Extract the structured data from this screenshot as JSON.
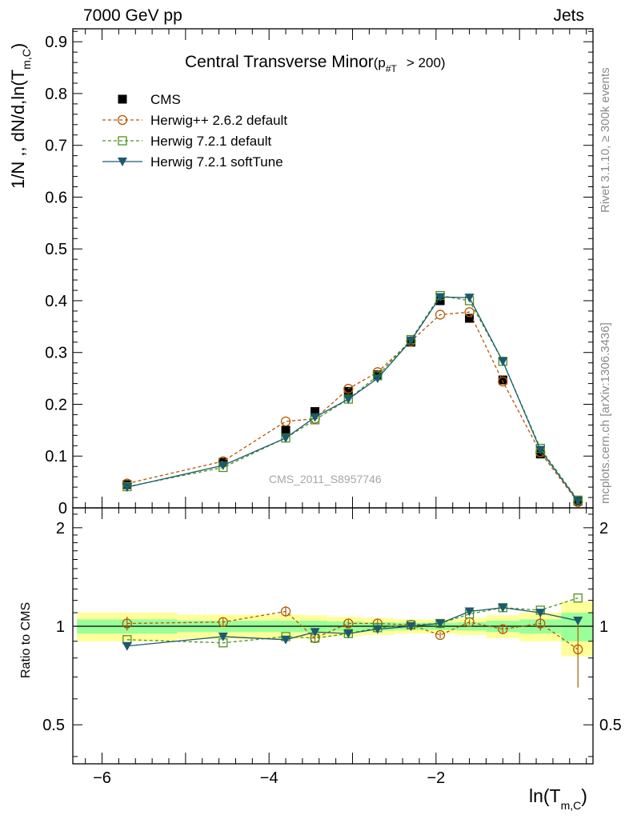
{
  "header": {
    "energy_label": "7000 GeV pp",
    "category_label": "Jets"
  },
  "side_labels": {
    "rivet": "Rivet 3.1.10, ≥ 300k events",
    "mcplots": "mcplots.cern.ch [arXiv:1306.3436]"
  },
  "chart_data": {
    "type": "line",
    "title": "Central Transverse Minor",
    "title_cut": "(p",
    "title_cut_sub": "#T",
    "title_cut_tail": "> 200)",
    "watermark": "CMS_2011_S8957746",
    "xlabel": "ln(T",
    "xlabel_sub": "m,C",
    "xlabel_tail": ")",
    "ylabel": "1/N ,, dN/d,ln(T",
    "ylabel_sub": "m,C",
    "ylabel_tail": ")",
    "ratio_ylabel": "Ratio to CMS",
    "xlim": [
      -6.35,
      -0.12
    ],
    "ylim": [
      0,
      0.925
    ],
    "ratio_ylim": [
      0.38,
      2.3
    ],
    "ratio_scale": "log",
    "x_ticks": [
      "−6",
      "−4",
      "−2"
    ],
    "x_tick_values": [
      -6,
      -4,
      -2
    ],
    "y_ticks": [
      "0",
      "0.1",
      "0.2",
      "0.3",
      "0.4",
      "0.5",
      "0.6",
      "0.7",
      "0.8",
      "0.9"
    ],
    "y_tick_values": [
      0,
      0.1,
      0.2,
      0.3,
      0.4,
      0.5,
      0.6,
      0.7,
      0.8,
      0.9
    ],
    "ratio_ticks": [
      "0.5",
      "1",
      "2"
    ],
    "ratio_tick_values": [
      0.5,
      1,
      2
    ],
    "legend_position": "top-left",
    "x": [
      -5.7,
      -4.55,
      -3.8,
      -3.45,
      -3.05,
      -2.7,
      -2.3,
      -1.95,
      -1.6,
      -1.2,
      -0.75,
      -0.3
    ],
    "x_edges": [
      -6.3,
      -5.1,
      -4.05,
      -3.55,
      -3.3,
      -2.9,
      -2.5,
      -2.1,
      -1.75,
      -1.4,
      -1.0,
      -0.5,
      -0.12
    ],
    "series": [
      {
        "name": "CMS",
        "color": "#000000",
        "marker": "square-filled",
        "line": "none",
        "values": [
          0.045,
          0.088,
          0.15,
          0.186,
          0.225,
          0.257,
          0.32,
          0.4,
          0.366,
          0.247,
          0.104,
          0.013
        ],
        "ratio": [
          1,
          1,
          1,
          1,
          1,
          1,
          1,
          1,
          1,
          1,
          1,
          1
        ]
      },
      {
        "name": "Herwig++ 2.6.2 default",
        "color": "#b35806",
        "marker": "circle-open",
        "line": "dashed",
        "values": [
          0.047,
          0.09,
          0.167,
          0.172,
          0.23,
          0.262,
          0.322,
          0.373,
          0.378,
          0.244,
          0.107,
          0.011
        ],
        "ratio": [
          1.02,
          1.03,
          1.11,
          0.92,
          1.02,
          1.02,
          1.01,
          0.94,
          1.03,
          0.98,
          1.02,
          0.85
        ],
        "ratio_err": [
          0.05,
          0.03,
          0.04,
          0.03,
          0.03,
          0.03,
          0.02,
          0.02,
          0.02,
          0.03,
          0.05,
          0.2
        ]
      },
      {
        "name": "Herwig 7.2.1 default",
        "color": "#4d9221",
        "marker": "square-open",
        "line": "dashed",
        "values": [
          0.041,
          0.078,
          0.135,
          0.17,
          0.21,
          0.255,
          0.325,
          0.41,
          0.4,
          0.283,
          0.115,
          0.015
        ],
        "ratio": [
          0.91,
          0.89,
          0.93,
          0.92,
          0.95,
          0.99,
          1.01,
          1.02,
          1.09,
          1.14,
          1.12,
          1.22
        ]
      },
      {
        "name": "Herwig 7.2.1 softTune",
        "color": "#1b5a6e",
        "marker": "triangle-down-filled",
        "line": "solid",
        "values": [
          0.04,
          0.082,
          0.135,
          0.175,
          0.21,
          0.25,
          0.323,
          0.407,
          0.406,
          0.283,
          0.112,
          0.013
        ],
        "ratio": [
          0.87,
          0.93,
          0.91,
          0.96,
          0.95,
          0.98,
          1.0,
          1.02,
          1.11,
          1.14,
          1.1,
          1.04
        ]
      }
    ],
    "bands": {
      "outer_color": "#ffff99",
      "inner_color": "#99ff99",
      "outer_half_width": [
        0.1,
        0.085,
        0.085,
        0.08,
        0.07,
        0.06,
        0.05,
        0.05,
        0.06,
        0.08,
        0.1,
        0.19
      ],
      "inner_half_width": [
        0.05,
        0.04,
        0.04,
        0.04,
        0.035,
        0.03,
        0.025,
        0.025,
        0.03,
        0.04,
        0.05,
        0.1
      ]
    }
  }
}
